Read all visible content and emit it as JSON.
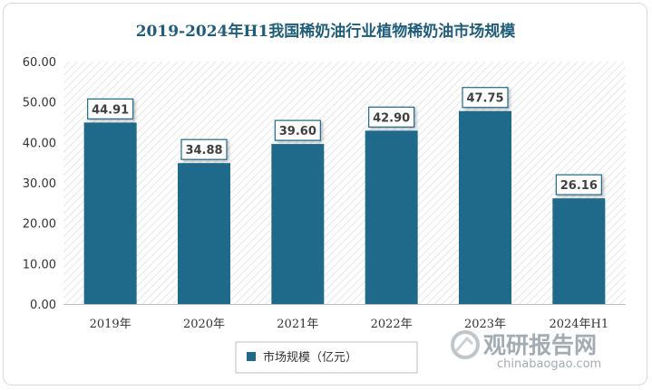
{
  "chart_data": {
    "type": "bar",
    "title": "2019-2024年H1我国稀奶油行业植物稀奶油市场规模",
    "categories": [
      "2019年",
      "2020年",
      "2021年",
      "2022年",
      "2023年",
      "2024年H1"
    ],
    "series": [
      {
        "name": "市场规模（亿元）",
        "values": [
          44.91,
          34.88,
          39.6,
          42.9,
          47.75,
          26.16
        ]
      }
    ],
    "data_labels": [
      "44.91",
      "34.88",
      "39.60",
      "42.90",
      "47.75",
      "26.16"
    ],
    "y_ticks": [
      "0.00",
      "10.00",
      "20.00",
      "30.00",
      "40.00",
      "50.00",
      "60.00"
    ],
    "ylim": [
      0,
      60
    ],
    "grid": false,
    "legend_position": "bottom",
    "bar_color": "#1f6a8a"
  },
  "watermark": {
    "name": "观研报告网",
    "url": "chinabaogao.com"
  }
}
